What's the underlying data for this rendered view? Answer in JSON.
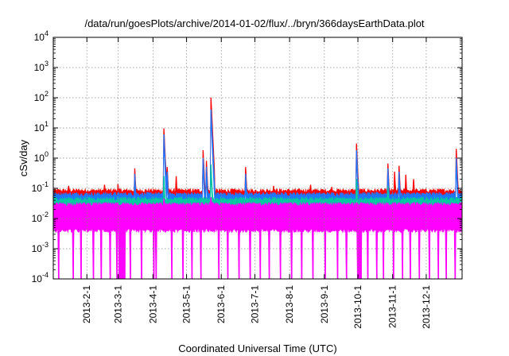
{
  "chart_data": {
    "type": "area",
    "title": "/data/run/goesPlots/archive/2014-01-02/flux/../bryn/366daysEarthData.plot",
    "xlabel": "Coordinated Universal Time (UTC)",
    "ylabel": "cSv/day",
    "y_scale": "log",
    "ylim": [
      0.0001,
      10000
    ],
    "xlim": [
      "2013-01-02",
      "2014-01-02"
    ],
    "grid": true,
    "y_ticks": [
      {
        "value": 0.0001,
        "base": "10",
        "exp": "-4"
      },
      {
        "value": 0.001,
        "base": "10",
        "exp": "-3"
      },
      {
        "value": 0.01,
        "base": "10",
        "exp": "-2"
      },
      {
        "value": 0.1,
        "base": "10",
        "exp": "-1"
      },
      {
        "value": 1,
        "base": "10",
        "exp": "0"
      },
      {
        "value": 10,
        "base": "10",
        "exp": "1"
      },
      {
        "value": 100,
        "base": "10",
        "exp": "2"
      },
      {
        "value": 1000,
        "base": "10",
        "exp": "3"
      },
      {
        "value": 10000,
        "base": "10",
        "exp": "4"
      }
    ],
    "x_ticks": [
      {
        "date": "2013-02-01",
        "label": "2013-2-1"
      },
      {
        "date": "2013-03-01",
        "label": "2013-3-1"
      },
      {
        "date": "2013-04-01",
        "label": "2013-4-1"
      },
      {
        "date": "2013-05-01",
        "label": "2013-5-1"
      },
      {
        "date": "2013-06-01",
        "label": "2013-6-1"
      },
      {
        "date": "2013-07-01",
        "label": "2013-7-1"
      },
      {
        "date": "2013-08-01",
        "label": "2013-8-1"
      },
      {
        "date": "2013-09-01",
        "label": "2013-9-1"
      },
      {
        "date": "2013-10-01",
        "label": "2013-10-1"
      },
      {
        "date": "2013-11-01",
        "label": "2013-11-1"
      },
      {
        "date": "2013-12-01",
        "label": "2013-12-1"
      }
    ],
    "series": [
      {
        "color": "#ff0000",
        "baseline": 0.085,
        "spikes": [
          [
            "2013-01-16",
            0.12
          ],
          [
            "2013-02-17",
            0.13
          ],
          [
            "2013-03-01",
            0.14
          ],
          [
            "2013-03-16",
            0.45
          ],
          [
            "2013-04-11",
            9.5
          ],
          [
            "2013-04-14",
            0.5
          ],
          [
            "2013-04-22",
            0.25
          ],
          [
            "2013-05-16",
            1.8
          ],
          [
            "2013-05-19",
            0.8
          ],
          [
            "2013-05-23",
            100
          ],
          [
            "2013-06-23",
            0.5
          ],
          [
            "2013-07-18",
            0.12
          ],
          [
            "2013-08-20",
            0.13
          ],
          [
            "2013-09-08",
            0.11
          ],
          [
            "2013-09-30",
            3.0
          ],
          [
            "2013-10-28",
            0.65
          ],
          [
            "2013-11-03",
            0.35
          ],
          [
            "2013-11-07",
            0.55
          ],
          [
            "2013-11-13",
            0.28
          ],
          [
            "2013-11-20",
            0.2
          ],
          [
            "2013-12-28",
            2.0
          ]
        ]
      },
      {
        "color": "#1f77ff",
        "baseline": 0.065,
        "spikes": [
          [
            "2013-03-16",
            0.3
          ],
          [
            "2013-04-11",
            6.0
          ],
          [
            "2013-04-14",
            0.35
          ],
          [
            "2013-05-16",
            1.0
          ],
          [
            "2013-05-19",
            0.5
          ],
          [
            "2013-05-23",
            40
          ],
          [
            "2013-06-23",
            0.3
          ],
          [
            "2013-09-30",
            1.8
          ],
          [
            "2013-10-28",
            0.45
          ],
          [
            "2013-11-07",
            0.35
          ],
          [
            "2013-12-28",
            1.0
          ]
        ]
      },
      {
        "color": "#00c8a0",
        "baseline": 0.045,
        "spikes": [
          [
            "2013-04-11",
            0.25
          ],
          [
            "2013-05-23",
            0.6
          ],
          [
            "2013-09-30",
            0.2
          ],
          [
            "2013-10-28",
            0.12
          ]
        ]
      },
      {
        "color": "#ff00ff",
        "baseline": 0.03,
        "floor": 0.004,
        "spikes": [
          [
            "2013-04-11",
            0.045
          ],
          [
            "2013-05-23",
            0.05
          ]
        ],
        "dropouts": [
          "2013-01-07",
          "2013-01-20",
          "2013-01-27",
          "2013-02-07",
          "2013-02-14",
          "2013-02-22",
          "2013-02-28",
          "2013-03-02",
          "2013-03-03",
          "2013-03-04",
          "2013-03-05",
          "2013-03-06",
          "2013-03-07",
          "2013-03-12",
          "2013-03-22",
          "2013-04-02",
          "2013-04-04",
          "2013-04-18",
          "2013-04-28",
          "2013-05-06",
          "2013-05-14",
          "2013-05-30",
          "2013-06-07",
          "2013-06-17",
          "2013-06-27",
          "2013-07-06",
          "2013-07-14",
          "2013-07-24",
          "2013-08-03",
          "2013-08-12",
          "2013-08-22",
          "2013-09-02",
          "2013-09-13",
          "2013-09-21",
          "2013-10-01",
          "2013-10-02",
          "2013-10-03",
          "2013-10-04",
          "2013-10-10",
          "2013-10-18",
          "2013-10-24",
          "2013-11-02",
          "2013-11-10",
          "2013-11-17",
          "2013-11-25",
          "2013-12-04",
          "2013-12-12",
          "2013-12-19",
          "2013-12-27"
        ]
      }
    ]
  }
}
